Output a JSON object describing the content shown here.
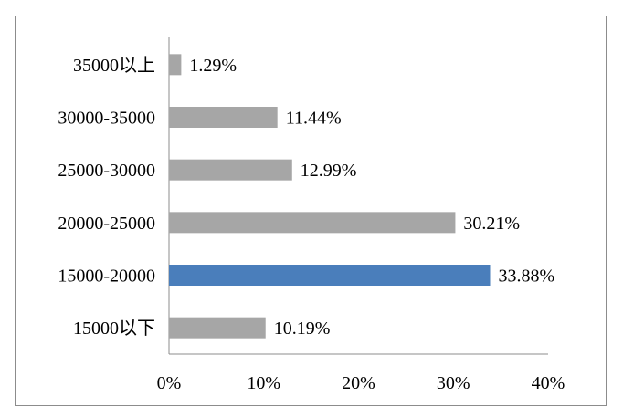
{
  "chart_data": {
    "type": "bar",
    "orientation": "horizontal",
    "categories": [
      "35000以上",
      "30000-35000",
      "25000-30000",
      "20000-25000",
      "15000-20000",
      "15000以下"
    ],
    "values": [
      1.29,
      11.44,
      12.99,
      30.21,
      33.88,
      10.19
    ],
    "value_labels": [
      "1.29%",
      "11.44%",
      "12.99%",
      "30.21%",
      "33.88%",
      "10.19%"
    ],
    "xlim": [
      0,
      40
    ],
    "x_ticks": [
      0,
      10,
      20,
      30,
      40
    ],
    "x_tick_labels": [
      "0%",
      "10%",
      "20%",
      "30%",
      "40%"
    ],
    "title": "",
    "xlabel": "",
    "ylabel": "",
    "grid": false,
    "legend": "none",
    "bar_color": "#a6a6a6",
    "highlight_color": "#4a7ebb",
    "highlight_index": 4
  }
}
